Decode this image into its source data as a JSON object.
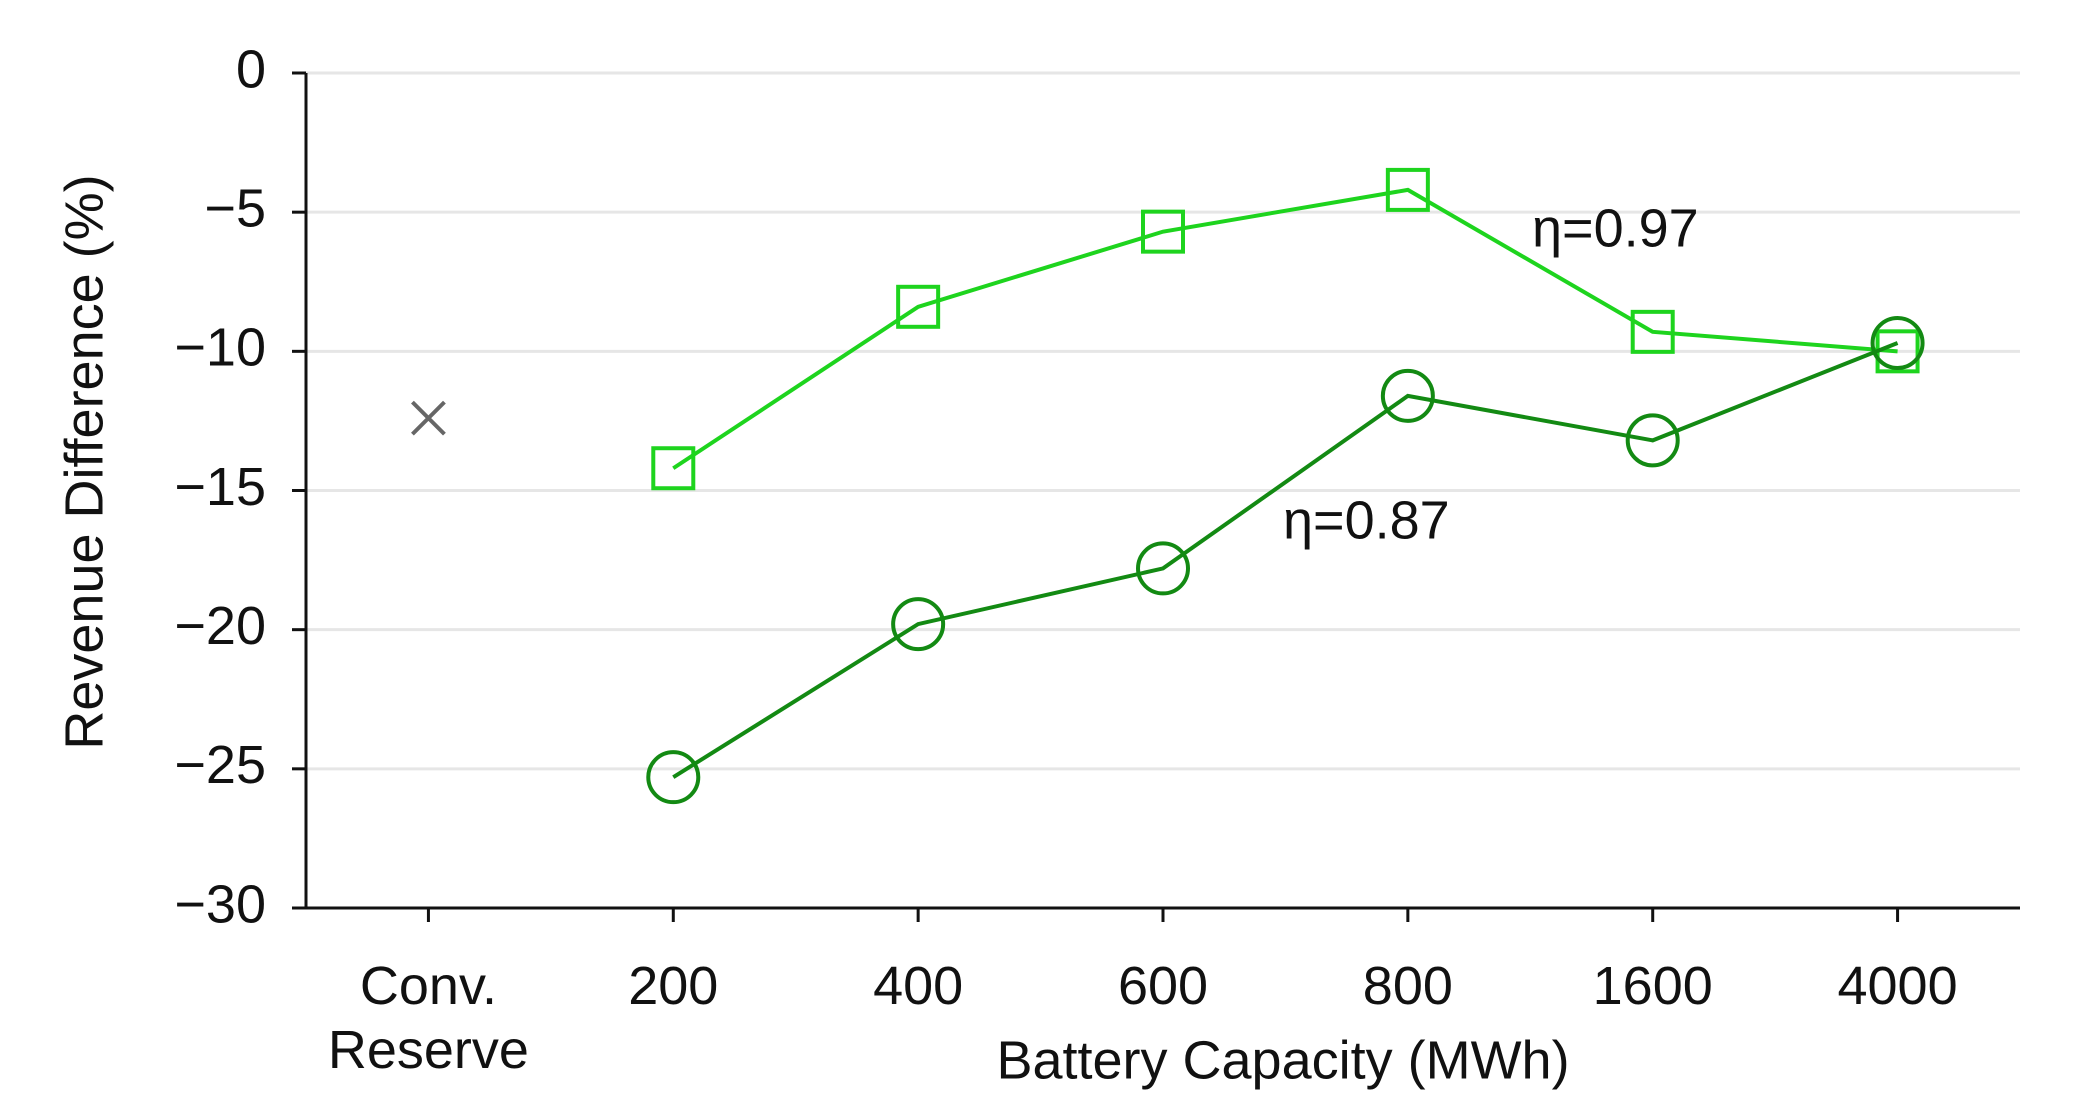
{
  "chart_data": {
    "type": "line",
    "xlabel": "Battery Capacity (MWh)",
    "ylabel": "Revenue Difference (%)",
    "categories": [
      "Conv. Reserve",
      "200",
      "400",
      "600",
      "800",
      "1600",
      "4000"
    ],
    "series": [
      {
        "name": "η=0.97",
        "color": "#1ed41e",
        "marker": "square",
        "values": [
          null,
          -14.2,
          -8.4,
          -5.7,
          -4.2,
          -9.3,
          -10.0
        ]
      },
      {
        "name": "η=0.87",
        "color": "#138a13",
        "marker": "circle",
        "values": [
          null,
          -25.3,
          -19.8,
          -17.8,
          -11.6,
          -13.2,
          -9.7
        ]
      },
      {
        "color": "#666666",
        "marker": "x",
        "values": [
          -12.4,
          null,
          null,
          null,
          null,
          null,
          null
        ]
      }
    ],
    "ylim": [
      -30,
      0
    ],
    "yticks": [
      {
        "value": -30,
        "label": "−30"
      },
      {
        "value": -25,
        "label": "−25"
      },
      {
        "value": -20,
        "label": "−20"
      },
      {
        "value": -15,
        "label": "−15"
      },
      {
        "value": -10,
        "label": "−10"
      },
      {
        "value": -5,
        "label": "−5"
      },
      0
    ],
    "grid": true
  }
}
